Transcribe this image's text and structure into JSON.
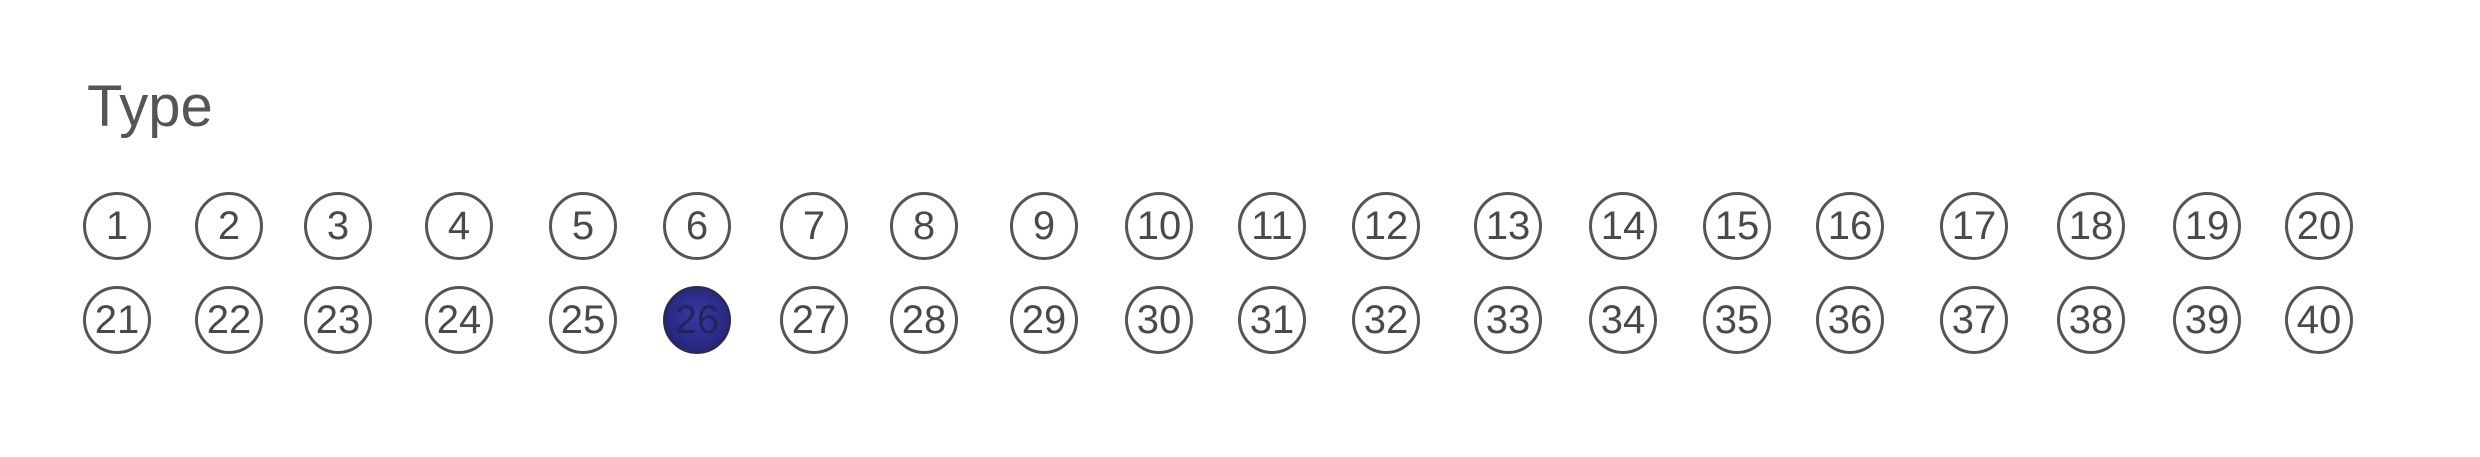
{
  "title": "Type",
  "selected": 26,
  "bubbles": [
    "1",
    "2",
    "3",
    "4",
    "5",
    "6",
    "7",
    "8",
    "9",
    "10",
    "11",
    "12",
    "13",
    "14",
    "15",
    "16",
    "17",
    "18",
    "19",
    "20",
    "21",
    "22",
    "23",
    "24",
    "25",
    "26",
    "27",
    "28",
    "29",
    "30",
    "31",
    "32",
    "33",
    "34",
    "35",
    "36",
    "37",
    "38",
    "39",
    "40"
  ]
}
